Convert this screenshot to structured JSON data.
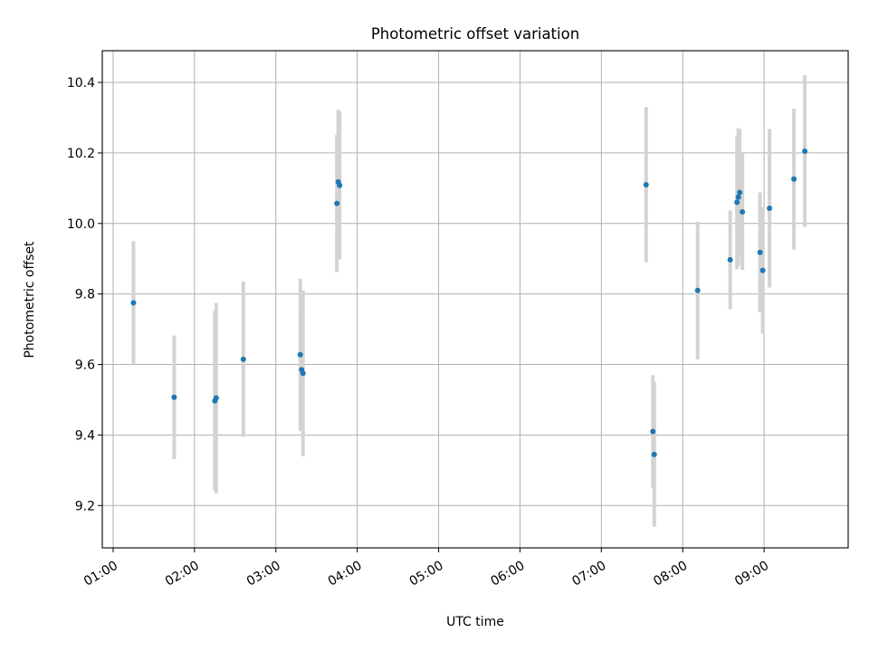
{
  "chart_data": {
    "type": "scatter",
    "title": "Photometric offset variation",
    "xlabel": "UTC time",
    "ylabel": "Photometric offset",
    "xlim": [
      "00:52",
      "10:02"
    ],
    "ylim": [
      9.08,
      10.49
    ],
    "grid": true,
    "legend": "none",
    "xticks": [
      "01:00",
      "02:00",
      "03:00",
      "04:00",
      "05:00",
      "06:00",
      "07:00",
      "08:00",
      "09:00"
    ],
    "yticks": [
      9.2,
      9.4,
      9.6,
      9.8,
      10.0,
      10.2,
      10.4
    ],
    "ytick_labels": [
      "9.2",
      "9.4",
      "9.6",
      "9.8",
      "10.0",
      "10.2",
      "10.4"
    ],
    "series": [
      {
        "error_color": "#d3d3d3",
        "marker_color": "#1f77b4",
        "points": [
          {
            "x": "01:15",
            "y": 9.775,
            "err": 0.175
          },
          {
            "x": "01:45",
            "y": 9.507,
            "err": 0.175
          },
          {
            "x": "02:15",
            "y": 9.497,
            "err": 0.255
          },
          {
            "x": "02:16",
            "y": 9.505,
            "err": 0.27
          },
          {
            "x": "02:36",
            "y": 9.615,
            "err": 0.22
          },
          {
            "x": "03:18",
            "y": 9.628,
            "err": 0.215
          },
          {
            "x": "03:19",
            "y": 9.585,
            "err": 0.175
          },
          {
            "x": "03:20",
            "y": 9.575,
            "err": 0.235
          },
          {
            "x": "03:45",
            "y": 10.057,
            "err": 0.195
          },
          {
            "x": "03:46",
            "y": 10.118,
            "err": 0.205
          },
          {
            "x": "03:47",
            "y": 10.108,
            "err": 0.21
          },
          {
            "x": "07:33",
            "y": 10.11,
            "err": 0.22
          },
          {
            "x": "07:38",
            "y": 9.41,
            "err": 0.16
          },
          {
            "x": "07:39",
            "y": 9.345,
            "err": 0.205
          },
          {
            "x": "08:11",
            "y": 9.81,
            "err": 0.195
          },
          {
            "x": "08:35",
            "y": 9.897,
            "err": 0.14
          },
          {
            "x": "08:40",
            "y": 10.06,
            "err": 0.19
          },
          {
            "x": "08:41",
            "y": 10.075,
            "err": 0.195
          },
          {
            "x": "08:42",
            "y": 10.088,
            "err": 0.18
          },
          {
            "x": "08:44",
            "y": 10.033,
            "err": 0.165
          },
          {
            "x": "08:57",
            "y": 9.918,
            "err": 0.17
          },
          {
            "x": "08:59",
            "y": 9.867,
            "err": 0.18
          },
          {
            "x": "09:04",
            "y": 10.043,
            "err": 0.225
          },
          {
            "x": "09:22",
            "y": 10.126,
            "err": 0.2
          },
          {
            "x": "09:30",
            "y": 10.205,
            "err": 0.215
          }
        ]
      }
    ]
  }
}
